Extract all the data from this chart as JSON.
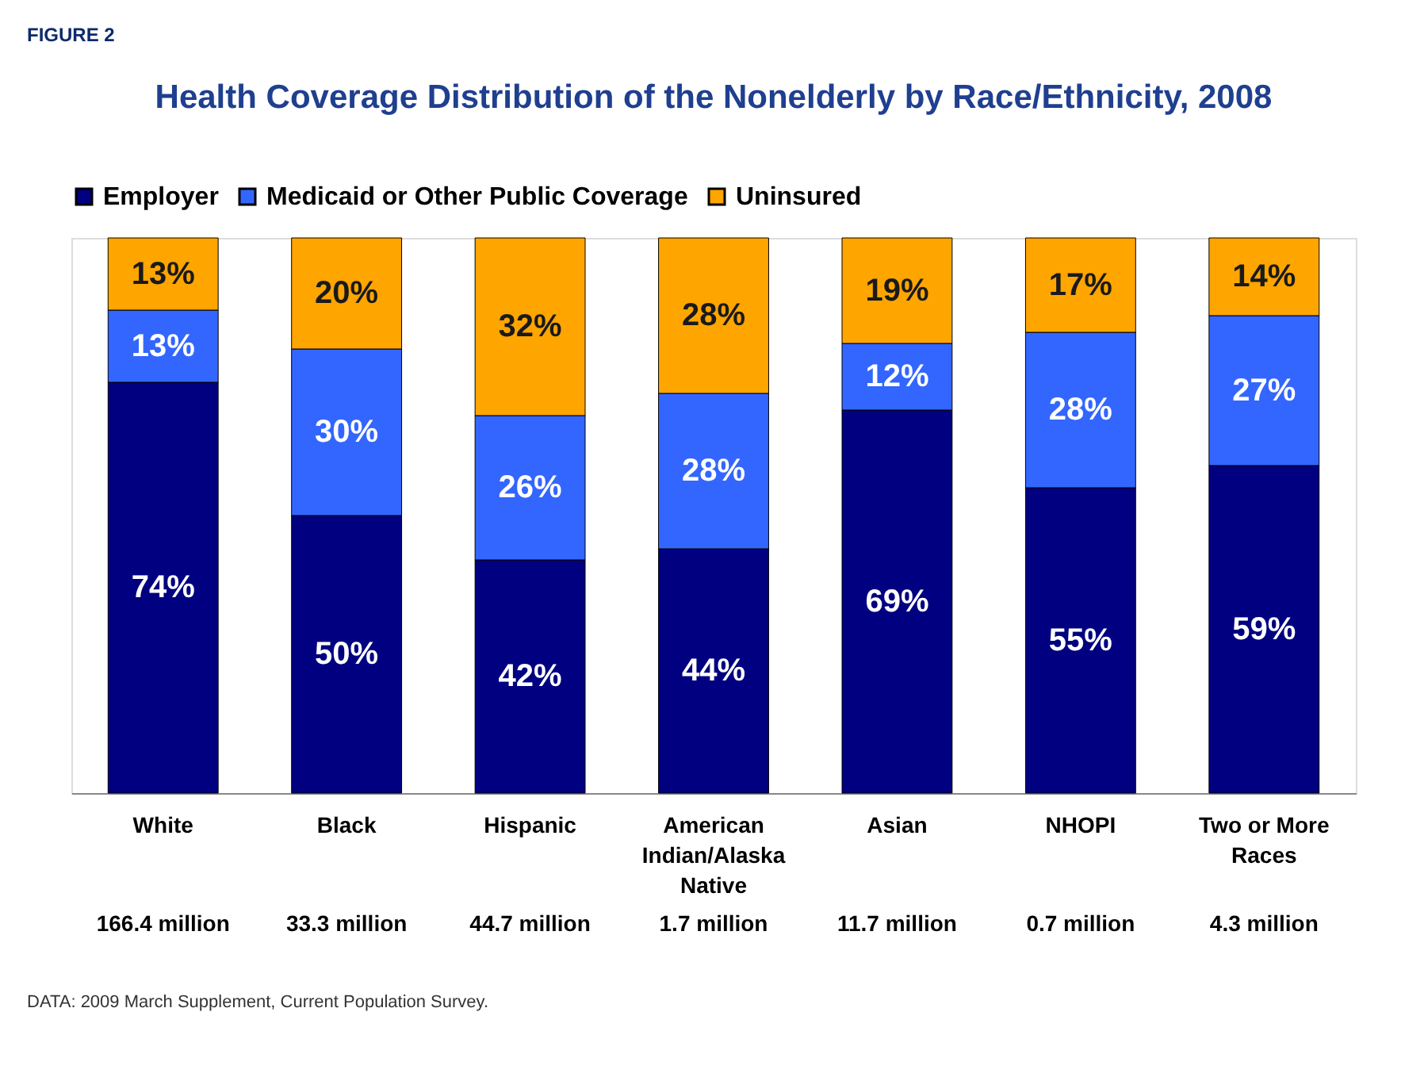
{
  "chart_data": {
    "type": "bar",
    "title": "Health Coverage Distribution of the Nonelderly by Race/Ethnicity, 2008",
    "stacked": true,
    "legend": "top",
    "categories": [
      "White",
      "Black",
      "Hispanic",
      "American Indian/Alaska Native",
      "Asian",
      "NHOPI",
      "Two or More Races"
    ],
    "series": [
      {
        "name": "Employer",
        "color": "#000080",
        "values": [
          74,
          50,
          42,
          44,
          69,
          55,
          59
        ],
        "value_labels": [
          "74%",
          "50%",
          "42%",
          "44%",
          "69%",
          "55%",
          "59%"
        ]
      },
      {
        "name": "Medicaid or Other Public Coverage",
        "color": "#3366ff",
        "values": [
          13,
          30,
          26,
          28,
          12,
          28,
          27
        ],
        "value_labels": [
          "13%",
          "30%",
          "26%",
          "28%",
          "12%",
          "28%",
          "27%"
        ]
      },
      {
        "name": "Uninsured",
        "color": "#ffa500",
        "values": [
          13,
          20,
          32,
          28,
          19,
          17,
          14
        ],
        "value_labels": [
          "13%",
          "20%",
          "32%",
          "28%",
          "19%",
          "17%",
          "14%"
        ]
      }
    ],
    "annotations": [
      "166.4 million",
      "33.3 million",
      "44.7 million",
      "1.7 million",
      "11.7 million",
      "0.7 million",
      "4.3 million",
      "FIGURE 2",
      "DATA: 2009 March Supplement, Current Population Survey."
    ]
  }
}
